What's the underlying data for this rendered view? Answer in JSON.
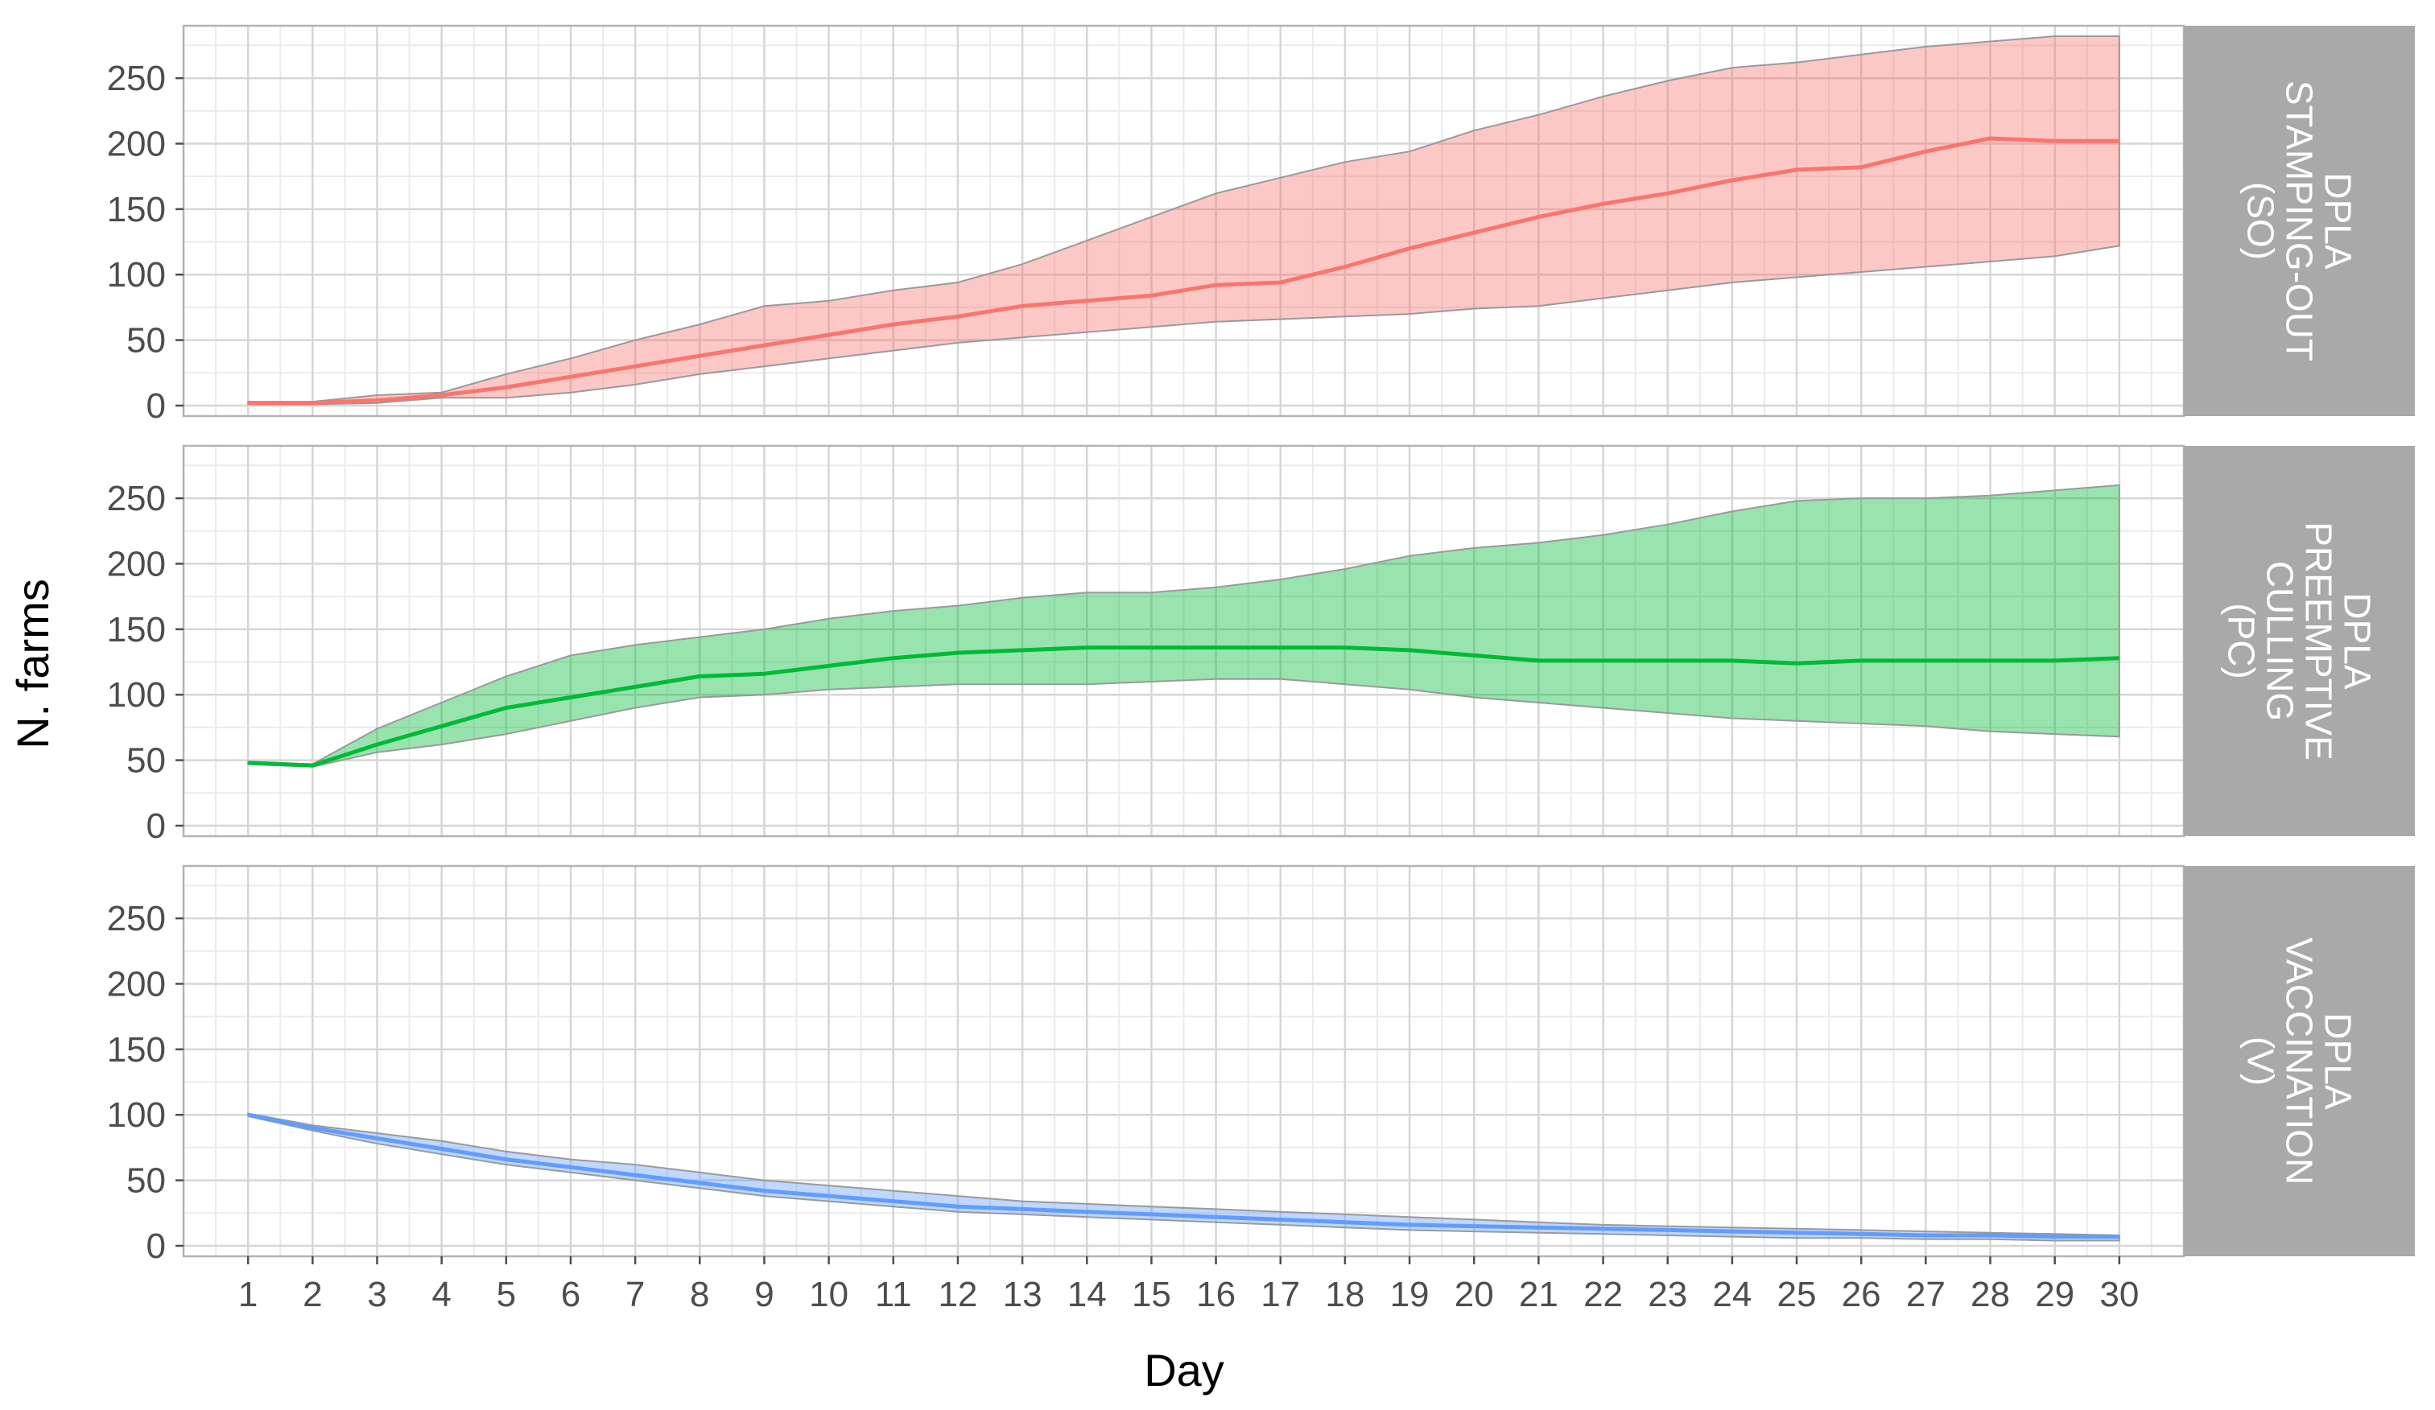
{
  "chart_data": {
    "type": "area",
    "xlabel": "Day",
    "ylabel": "N. farms",
    "xlim": [
      0,
      31
    ],
    "ylim": [
      -8,
      290
    ],
    "x_ticks": [
      1,
      2,
      3,
      4,
      5,
      6,
      7,
      8,
      9,
      10,
      11,
      12,
      13,
      14,
      15,
      16,
      17,
      18,
      19,
      20,
      21,
      22,
      23,
      24,
      25,
      26,
      27,
      28,
      29,
      30
    ],
    "y_ticks": [
      0,
      50,
      100,
      150,
      200,
      250
    ],
    "grid": true,
    "x": [
      1,
      2,
      3,
      4,
      5,
      6,
      7,
      8,
      9,
      10,
      11,
      12,
      13,
      14,
      15,
      16,
      17,
      18,
      19,
      20,
      21,
      22,
      23,
      24,
      25,
      26,
      27,
      28,
      29,
      30
    ],
    "panels": [
      {
        "strip": [
          "DPLA",
          "STAMPING-OUT",
          "(SO)"
        ],
        "line_color": "#f8766d",
        "band_color": "#f8766d",
        "mean": [
          2,
          2,
          4,
          8,
          14,
          22,
          30,
          38,
          46,
          54,
          62,
          68,
          76,
          80,
          84,
          92,
          94,
          106,
          120,
          132,
          144,
          154,
          162,
          172,
          180,
          182,
          194,
          204,
          202,
          202
        ],
        "lower": [
          1,
          1,
          2,
          6,
          6,
          10,
          16,
          24,
          30,
          36,
          42,
          48,
          52,
          56,
          60,
          64,
          66,
          68,
          70,
          74,
          76,
          82,
          88,
          94,
          98,
          102,
          106,
          110,
          114,
          122
        ],
        "upper": [
          3,
          3,
          8,
          10,
          24,
          36,
          50,
          62,
          76,
          80,
          88,
          94,
          108,
          126,
          144,
          162,
          174,
          186,
          194,
          210,
          222,
          236,
          248,
          258,
          262,
          268,
          274,
          278,
          282,
          282
        ]
      },
      {
        "strip": [
          "DPLA",
          "PREEMPTIVE",
          "CULLING",
          "(PC)"
        ],
        "line_color": "#00ba38",
        "band_color": "#00ba38",
        "mean": [
          48,
          46,
          62,
          76,
          90,
          98,
          106,
          114,
          116,
          122,
          128,
          132,
          134,
          136,
          136,
          136,
          136,
          136,
          134,
          130,
          126,
          126,
          126,
          126,
          124,
          126,
          126,
          126,
          126,
          128
        ],
        "lower": [
          47,
          45,
          56,
          62,
          70,
          80,
          90,
          98,
          100,
          104,
          106,
          108,
          108,
          108,
          110,
          112,
          112,
          108,
          104,
          98,
          94,
          90,
          86,
          82,
          80,
          78,
          76,
          72,
          70,
          68
        ],
        "upper": [
          49,
          47,
          74,
          94,
          114,
          130,
          138,
          144,
          150,
          158,
          164,
          168,
          174,
          178,
          178,
          182,
          188,
          196,
          206,
          212,
          216,
          222,
          230,
          240,
          248,
          250,
          250,
          252,
          256,
          260
        ]
      },
      {
        "strip": [
          "DPLA",
          "VACCINATION",
          "(V)"
        ],
        "line_color": "#619cff",
        "band_color": "#619cff",
        "mean": [
          100,
          90,
          82,
          74,
          66,
          60,
          54,
          48,
          42,
          38,
          34,
          30,
          28,
          26,
          24,
          22,
          20,
          18,
          16,
          15,
          14,
          13,
          12,
          11,
          10,
          9,
          8,
          8,
          7,
          7
        ],
        "lower": [
          99,
          88,
          78,
          70,
          62,
          56,
          50,
          44,
          38,
          34,
          30,
          26,
          24,
          22,
          20,
          18,
          16,
          14,
          12,
          11,
          10,
          9,
          8,
          7,
          6,
          6,
          5,
          5,
          4,
          4
        ],
        "upper": [
          101,
          92,
          86,
          80,
          72,
          66,
          62,
          56,
          50,
          46,
          42,
          38,
          34,
          32,
          30,
          28,
          26,
          24,
          22,
          20,
          18,
          16,
          15,
          14,
          13,
          12,
          11,
          10,
          9,
          8
        ]
      }
    ]
  }
}
